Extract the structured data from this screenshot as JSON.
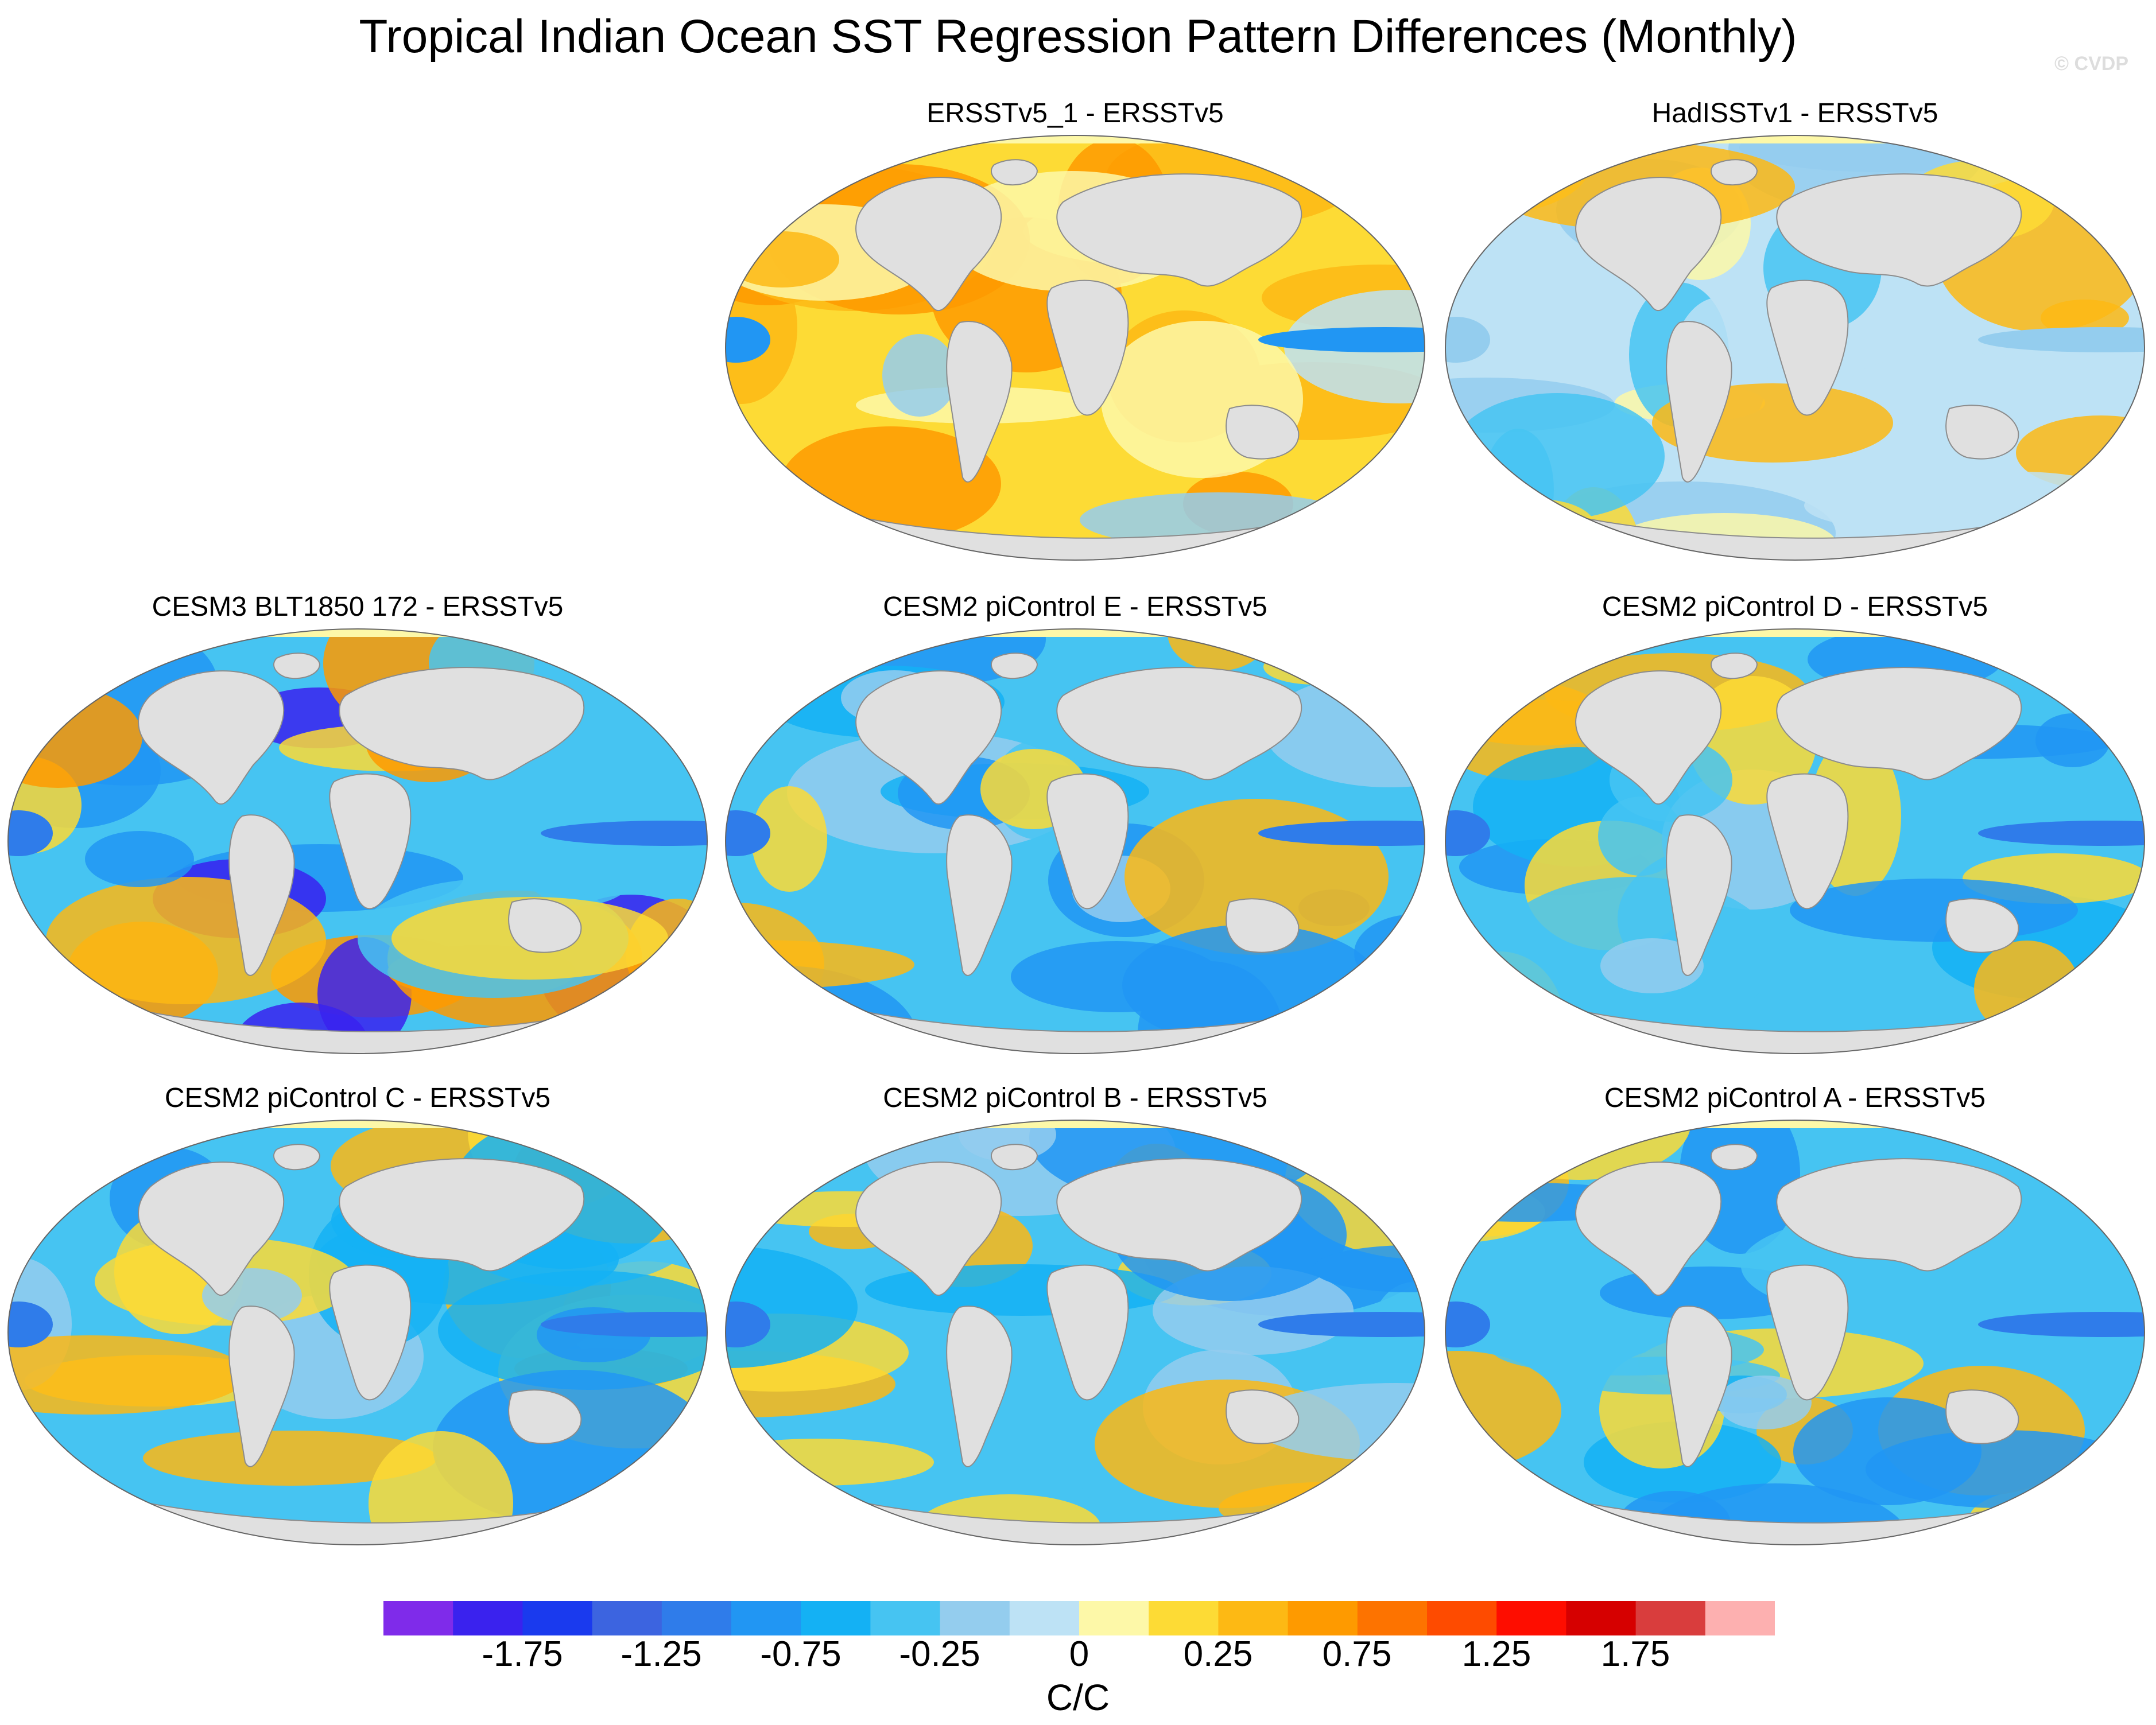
{
  "title": "Tropical Indian Ocean SST Regression Pattern Differences (Monthly)",
  "watermark": "© CVDP",
  "panels": [
    {
      "title": "ERSSTv5_1 - ERSSTv5",
      "scheme": "obs1"
    },
    {
      "title": "HadISSTv1 - ERSSTv5",
      "scheme": "obs2"
    },
    {
      "title": "CESM3 BLT1850 172 - ERSSTv5",
      "scheme": "cesm3"
    },
    {
      "title": "CESM2 piControl E - ERSSTv5",
      "scheme": "cesm2"
    },
    {
      "title": "CESM2 piControl D - ERSSTv5",
      "scheme": "cesm2"
    },
    {
      "title": "CESM2 piControl C - ERSSTv5",
      "scheme": "cesm2"
    },
    {
      "title": "CESM2 piControl B - ERSSTv5",
      "scheme": "cesm2"
    },
    {
      "title": "CESM2 piControl A - ERSSTv5",
      "scheme": "cesm2"
    }
  ],
  "colorbar": {
    "units": "C/C",
    "labels": [
      "-1.75",
      "-1.25",
      "-0.75",
      "-0.25",
      "0",
      "0.25",
      "0.75",
      "1.25",
      "1.75"
    ],
    "colors": [
      "#7f2bea",
      "#3a22ee",
      "#1a3aee",
      "#3c64e0",
      "#2f7cea",
      "#2196f3",
      "#14b1f4",
      "#46c4f2",
      "#94cdee",
      "#bde2f5",
      "#fdf8a8",
      "#fddb35",
      "#fdb914",
      "#fe9a00",
      "#fd7300",
      "#fe4b00",
      "#fe0d00",
      "#d60000",
      "#d93d3d",
      "#fdb0b0"
    ]
  }
}
